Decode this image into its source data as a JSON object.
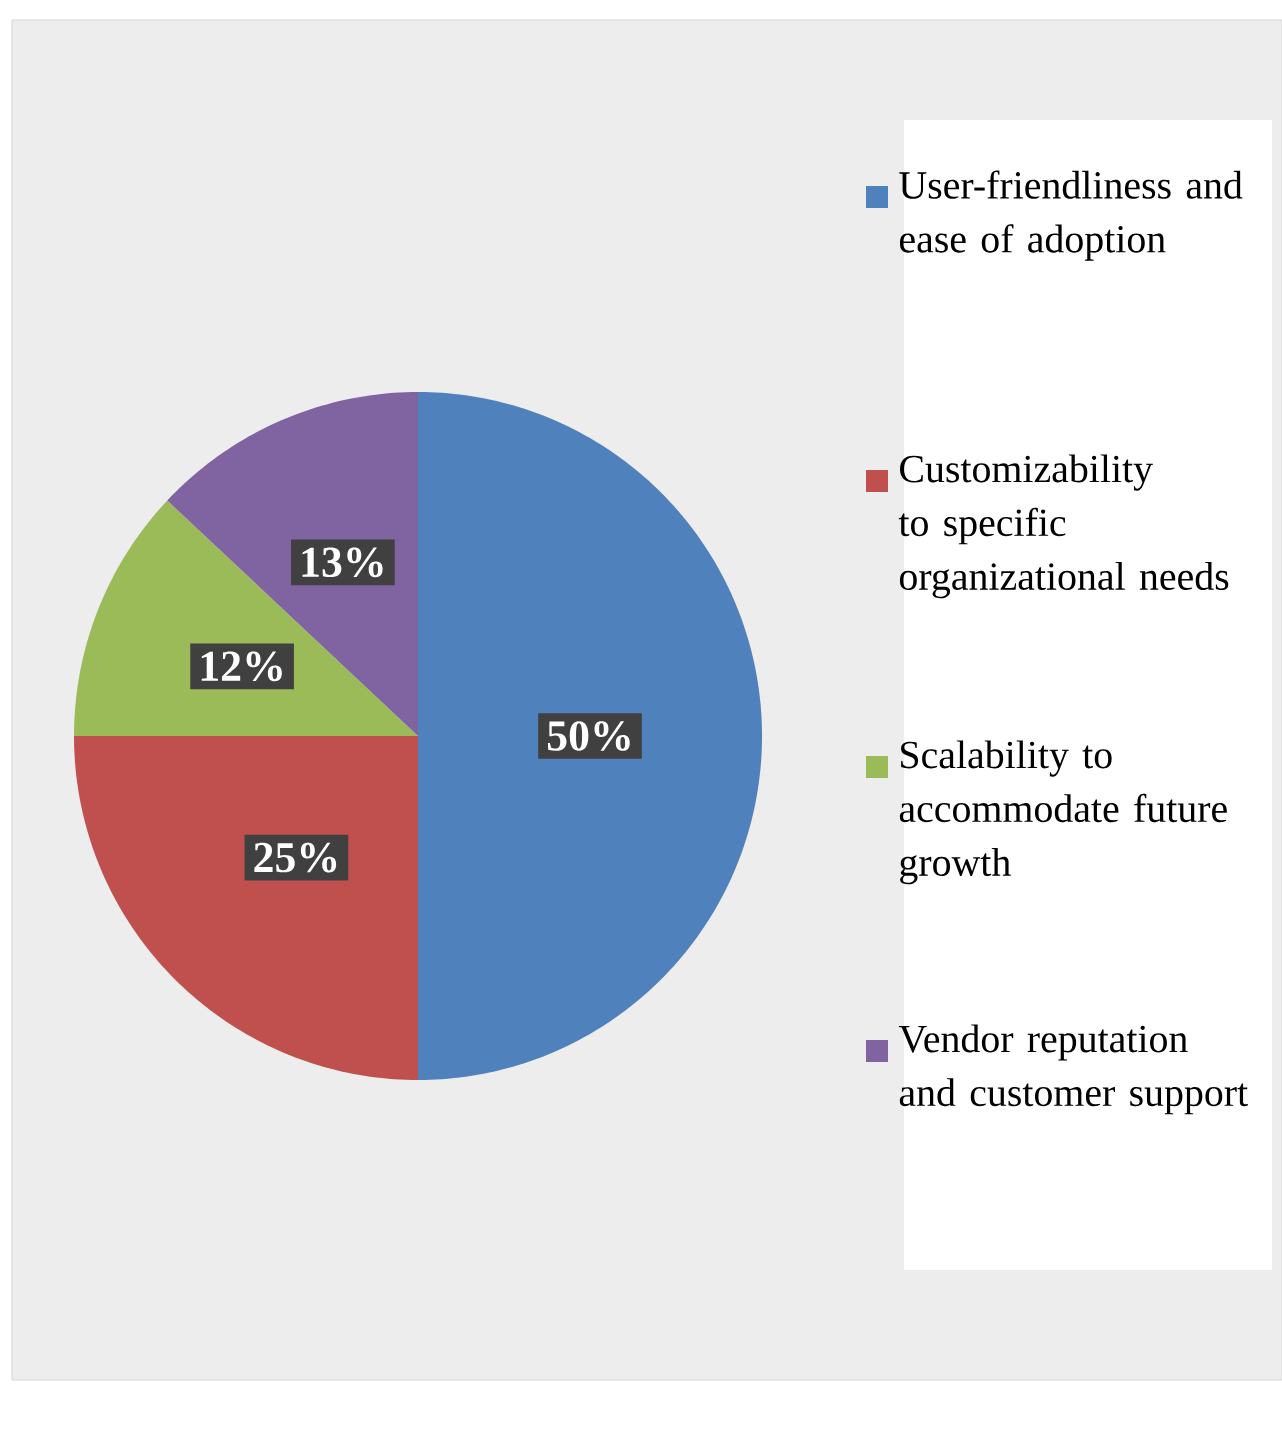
{
  "chart_data": {
    "type": "pie",
    "categories": [
      "User-friendliness and ease of adoption",
      "Customizability to specific organizational needs",
      "Scalability to accommodate future growth",
      "Vendor reputation and customer support"
    ],
    "values": [
      50,
      25,
      12,
      13
    ],
    "colors": [
      "#4f81bd",
      "#c0504d",
      "#9bbb59",
      "#8064a2"
    ],
    "value_labels": [
      "50%",
      "25%",
      "12%",
      "13%"
    ],
    "legend": "right"
  }
}
